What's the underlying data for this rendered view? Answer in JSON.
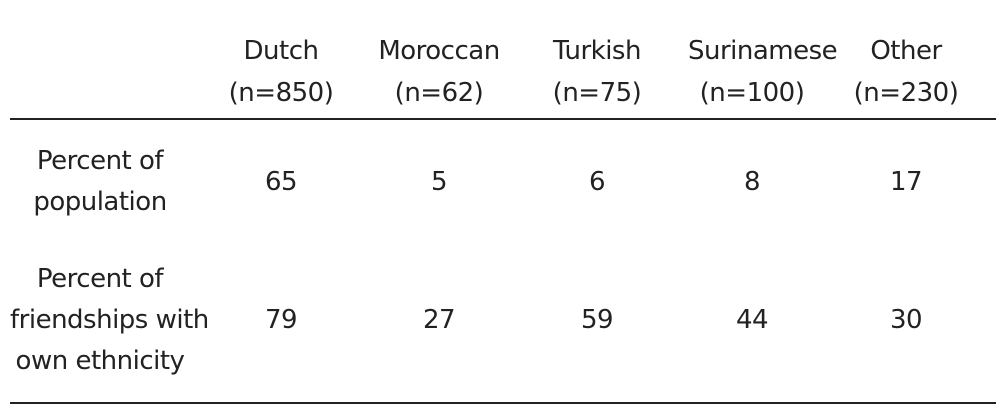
{
  "table": {
    "columns": [
      {
        "name": "Dutch",
        "n": "(n=850)"
      },
      {
        "name": "Moroccan",
        "n": "(n=62)"
      },
      {
        "name": "Turkish",
        "n": "(n=75)"
      },
      {
        "name": "Surinamese",
        "n": "(n=100)"
      },
      {
        "name": "Other",
        "n": "(n=230)"
      }
    ],
    "rows": [
      {
        "label_lines": [
          "Percent of",
          "population"
        ],
        "values": [
          "65",
          "5",
          "6",
          "8",
          "17"
        ]
      },
      {
        "label_lines": [
          "Percent of",
          "friendships with",
          "own ethnicity"
        ],
        "values": [
          "79",
          "27",
          "59",
          "44",
          "30"
        ]
      }
    ]
  }
}
